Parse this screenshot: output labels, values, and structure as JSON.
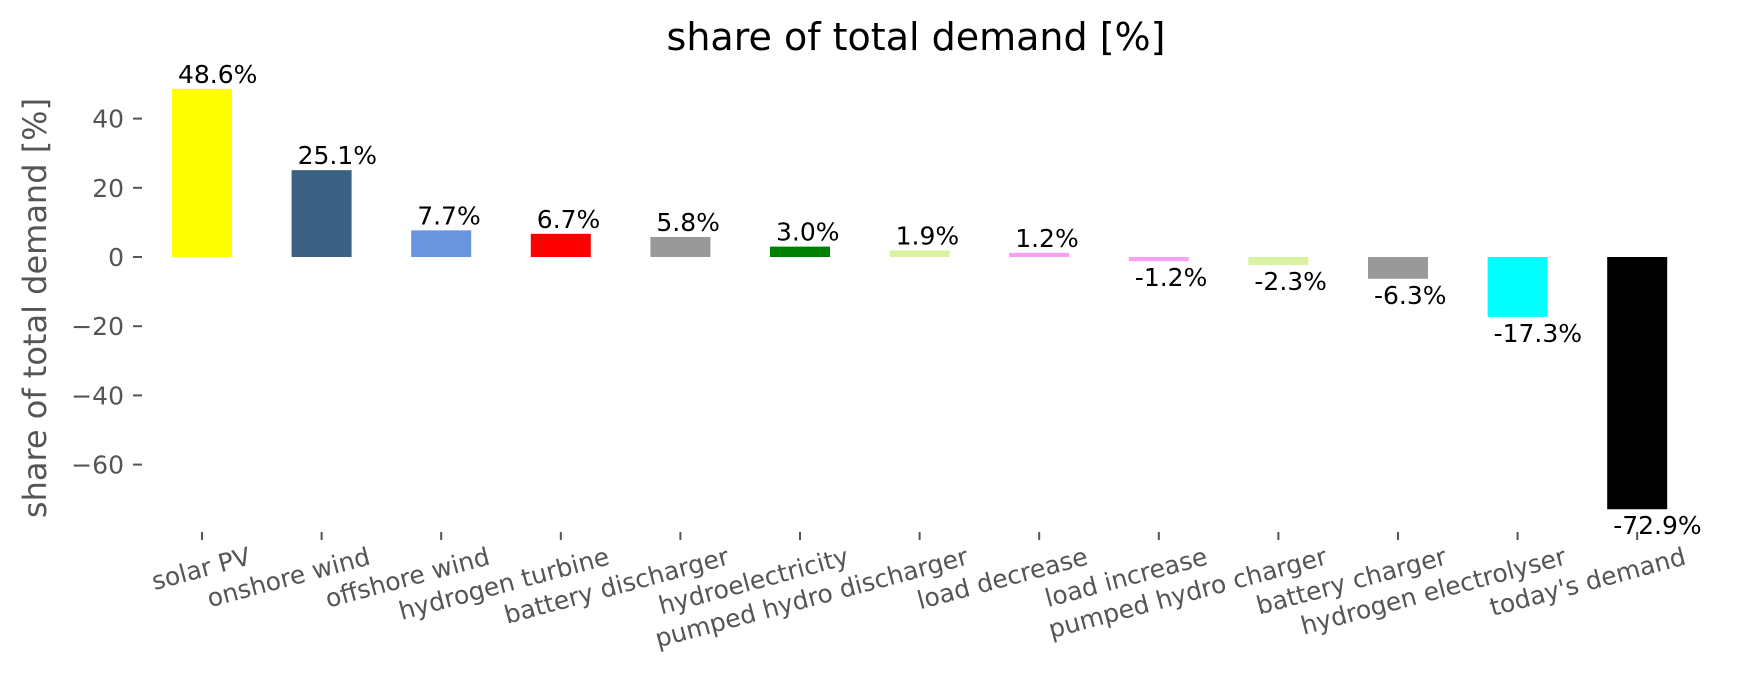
{
  "chart_data": {
    "type": "bar",
    "title": "share of total demand [%]",
    "xlabel": "",
    "ylabel": "share of total demand [%]",
    "ylim": [
      -80,
      50
    ],
    "yticks": [
      40,
      20,
      0,
      -20,
      -40,
      -60
    ],
    "ytick_labels": [
      "40",
      "20",
      "0",
      "−20",
      "−40",
      "−60"
    ],
    "grid": false,
    "categories": [
      "solar PV",
      "onshore wind",
      "offshore wind",
      "hydrogen turbine",
      "battery discharger",
      "hydroelectricity",
      "pumped hydro discharger",
      "load decrease",
      "load increase",
      "pumped hydro charger",
      "battery charger",
      "hydrogen electrolyser",
      "today's demand"
    ],
    "values": [
      48.6,
      25.1,
      7.7,
      6.7,
      5.8,
      3.0,
      1.9,
      1.2,
      -1.2,
      -2.3,
      -6.3,
      -17.3,
      -72.9
    ],
    "labels": [
      "48.6%",
      "25.1%",
      "7.7%",
      "6.7%",
      "5.8%",
      "3.0%",
      "1.9%",
      "1.2%",
      "-1.2%",
      "-2.3%",
      "-6.3%",
      "-17.3%",
      "-72.9%"
    ],
    "colors": [
      "#ffff00",
      "#3b6182",
      "#6895dd",
      "#ff0000",
      "#999999",
      "#008000",
      "#d9f3a2",
      "#f9a0f5",
      "#f9a0f5",
      "#d9f3a2",
      "#999999",
      "#00ffff",
      "#000000"
    ]
  }
}
